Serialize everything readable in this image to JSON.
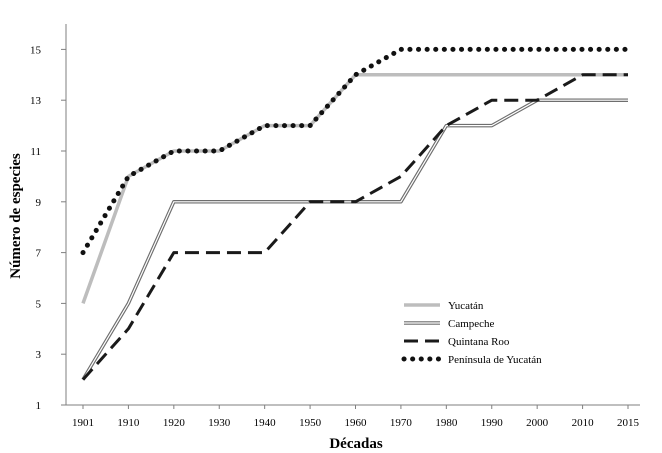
{
  "chart_data": {
    "type": "line",
    "title": "",
    "xlabel": "Décadas",
    "ylabel": "Número de especies",
    "categories": [
      "1901",
      "1910",
      "1920",
      "1930",
      "1940",
      "1950",
      "1960",
      "1970",
      "1980",
      "1990",
      "2000",
      "2010",
      "2015"
    ],
    "yticks": [
      1,
      3,
      5,
      7,
      9,
      11,
      13,
      15
    ],
    "ylim": [
      1,
      16
    ],
    "grid": false,
    "legend_position": "center-right",
    "series": [
      {
        "name": "Yucatán",
        "style": "solid-gray",
        "color": "#bdbdbd",
        "values": [
          5,
          10,
          11,
          11,
          12,
          12,
          14,
          14,
          14,
          14,
          14,
          14,
          14
        ]
      },
      {
        "name": "Campeche",
        "style": "double-line",
        "color": "#6e6e6e",
        "values": [
          2,
          5,
          9,
          9,
          9,
          9,
          9,
          9,
          12,
          12,
          13,
          13,
          13
        ]
      },
      {
        "name": "Quintana Roo",
        "style": "dashed",
        "color": "#1a1a1a",
        "values": [
          2,
          4,
          7,
          7,
          7,
          9,
          9,
          10,
          12,
          13,
          13,
          14,
          14
        ]
      },
      {
        "name": "Península de Yucatán",
        "style": "dotted",
        "color": "#111111",
        "values": [
          7,
          10,
          11,
          11,
          12,
          12,
          14,
          15,
          15,
          15,
          15,
          15,
          15
        ]
      }
    ]
  }
}
